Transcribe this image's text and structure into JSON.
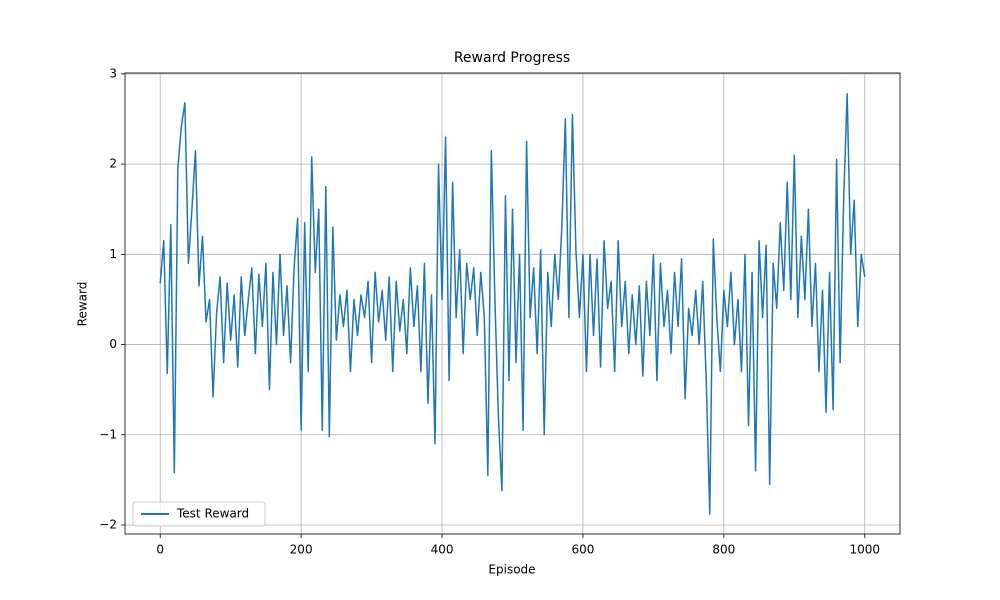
{
  "chart_data": {
    "type": "line",
    "title": "Reward Progress",
    "x_label": "Episode",
    "y_label": "Reward",
    "x": [
      0,
      5,
      10,
      15,
      20,
      25,
      30,
      35,
      40,
      45,
      50,
      55,
      60,
      65,
      70,
      75,
      80,
      85,
      90,
      95,
      100,
      105,
      110,
      115,
      120,
      125,
      130,
      135,
      140,
      145,
      150,
      155,
      160,
      165,
      170,
      175,
      180,
      185,
      190,
      195,
      200,
      205,
      210,
      215,
      220,
      225,
      230,
      235,
      240,
      245,
      250,
      255,
      260,
      265,
      270,
      275,
      280,
      285,
      290,
      295,
      300,
      305,
      310,
      315,
      320,
      325,
      330,
      335,
      340,
      345,
      350,
      355,
      360,
      365,
      370,
      375,
      380,
      385,
      390,
      395,
      400,
      405,
      410,
      415,
      420,
      425,
      430,
      435,
      440,
      445,
      450,
      455,
      460,
      465,
      470,
      475,
      480,
      485,
      490,
      495,
      500,
      505,
      510,
      515,
      520,
      525,
      530,
      535,
      540,
      545,
      550,
      555,
      560,
      565,
      570,
      575,
      580,
      585,
      590,
      595,
      600,
      605,
      610,
      615,
      620,
      625,
      630,
      635,
      640,
      645,
      650,
      655,
      660,
      665,
      670,
      675,
      680,
      685,
      690,
      695,
      700,
      705,
      710,
      715,
      720,
      725,
      730,
      735,
      740,
      745,
      750,
      755,
      760,
      765,
      770,
      775,
      780,
      785,
      790,
      795,
      800,
      805,
      810,
      815,
      820,
      825,
      830,
      835,
      840,
      845,
      850,
      855,
      860,
      865,
      870,
      875,
      880,
      885,
      890,
      895,
      900,
      905,
      910,
      915,
      920,
      925,
      930,
      935,
      940,
      945,
      950,
      955,
      960,
      965,
      970,
      975,
      980,
      985,
      990,
      995,
      1000
    ],
    "series": [
      {
        "name": "Test Reward",
        "color": "#1f77b4",
        "values": [
          0.68,
          1.15,
          -0.32,
          1.33,
          -1.42,
          1.95,
          2.42,
          2.68,
          0.9,
          1.5,
          2.15,
          0.65,
          1.2,
          0.25,
          0.5,
          -0.58,
          0.35,
          0.75,
          -0.2,
          0.68,
          0.05,
          0.55,
          -0.25,
          0.75,
          0.1,
          0.5,
          0.85,
          -0.1,
          0.78,
          0.2,
          0.9,
          -0.5,
          0.8,
          0.0,
          1.0,
          0.1,
          0.65,
          -0.2,
          0.85,
          1.4,
          -0.95,
          1.35,
          -0.3,
          2.08,
          0.8,
          1.5,
          -0.95,
          1.75,
          -1.02,
          1.3,
          0.05,
          0.55,
          0.2,
          0.6,
          -0.3,
          0.5,
          0.1,
          0.55,
          0.3,
          0.7,
          -0.2,
          0.8,
          0.25,
          0.6,
          0.05,
          0.75,
          -0.3,
          0.7,
          0.15,
          0.5,
          -0.1,
          0.85,
          0.2,
          0.65,
          -0.3,
          0.9,
          -0.65,
          0.55,
          -1.1,
          2.0,
          0.5,
          2.3,
          -0.4,
          1.8,
          0.3,
          1.05,
          -0.1,
          0.9,
          0.5,
          0.85,
          0.1,
          0.8,
          0.3,
          -1.45,
          2.15,
          0.5,
          -0.8,
          -1.62,
          1.65,
          -0.4,
          1.5,
          -0.2,
          1.0,
          -0.95,
          2.25,
          0.3,
          0.85,
          -0.1,
          1.05,
          -1.0,
          0.8,
          0.2,
          1.0,
          0.5,
          1.3,
          2.5,
          0.3,
          2.55,
          1.05,
          0.3,
          1.0,
          -0.3,
          1.0,
          0.1,
          0.95,
          -0.25,
          1.15,
          0.4,
          0.7,
          -0.3,
          1.15,
          0.2,
          0.7,
          -0.1,
          0.55,
          0.0,
          0.65,
          -0.35,
          0.7,
          0.1,
          1.0,
          -0.4,
          0.9,
          0.2,
          0.6,
          -0.1,
          0.8,
          0.2,
          0.95,
          -0.6,
          0.4,
          0.1,
          0.6,
          0.0,
          0.7,
          -0.4,
          -1.88,
          1.17,
          0.3,
          -0.3,
          0.6,
          0.2,
          0.8,
          0.0,
          0.5,
          -0.3,
          1.0,
          -0.9,
          0.8,
          -1.4,
          1.15,
          0.3,
          1.1,
          -1.55,
          0.9,
          0.4,
          1.35,
          0.6,
          1.8,
          0.5,
          2.1,
          0.3,
          1.2,
          0.5,
          1.5,
          0.2,
          0.9,
          -0.3,
          0.6,
          -0.75,
          0.8,
          -0.72,
          2.05,
          -0.2,
          1.6,
          2.78,
          1.0,
          1.6,
          0.2,
          1.0,
          0.75
        ]
      }
    ],
    "xlim": [
      -50,
      1050
    ],
    "xticks": [
      0,
      200,
      400,
      600,
      800,
      1000
    ],
    "ylim": [
      -2.1,
      3.01
    ],
    "yticks": [
      {
        "value": -2,
        "label": "−2"
      },
      {
        "value": -1,
        "label": "−1"
      },
      0,
      1,
      2,
      3
    ],
    "grid": true,
    "legend": "lower left"
  }
}
